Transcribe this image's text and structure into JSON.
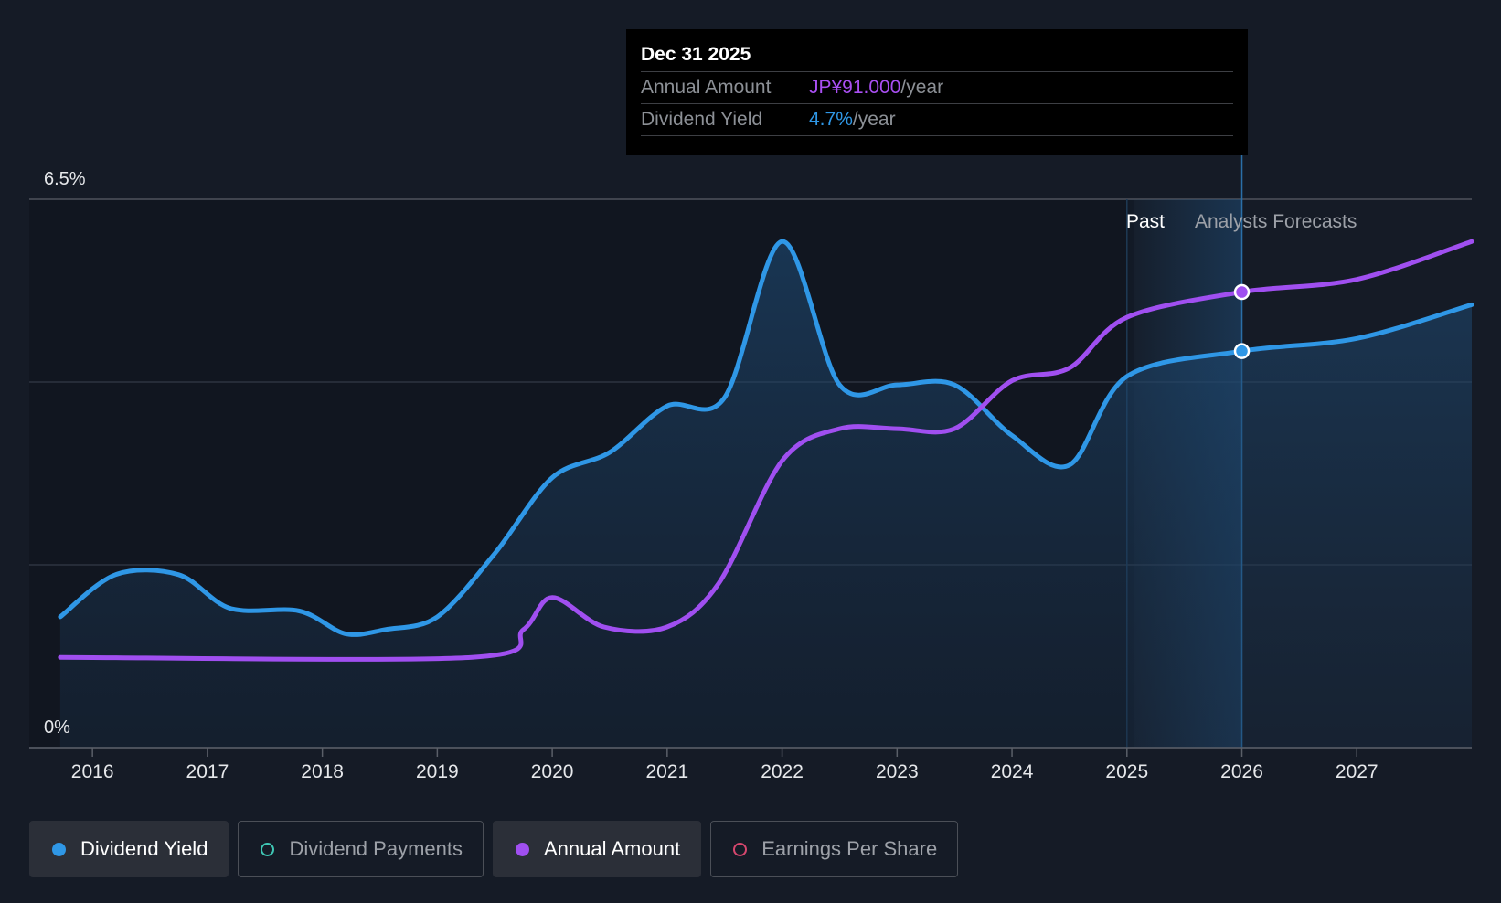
{
  "colors": {
    "yield": "#2f97e6",
    "annual": "#a04ff0",
    "payments": "#3fc7b5",
    "eps": "#d6476e"
  },
  "tooltip": {
    "date": "Dec 31 2025",
    "rows": [
      {
        "label": "Annual Amount",
        "value": "JP¥91.000",
        "unit": "/year",
        "color": "#a94ff2"
      },
      {
        "label": "Dividend Yield",
        "value": "4.7%",
        "unit": "/year",
        "color": "#2f97e6"
      }
    ]
  },
  "regions": {
    "past_label": "Past",
    "forecast_label": "Analysts Forecasts"
  },
  "legend": [
    {
      "label": "Dividend Yield",
      "color": "#2f97e6",
      "active": true,
      "filled": true
    },
    {
      "label": "Dividend Payments",
      "color": "#3fc7b5",
      "active": false,
      "filled": false
    },
    {
      "label": "Annual Amount",
      "color": "#a04ff0",
      "active": true,
      "filled": true
    },
    {
      "label": "Earnings Per Share",
      "color": "#d6476e",
      "active": false,
      "filled": false
    }
  ],
  "chart_data": {
    "type": "area",
    "x_ticks": [
      "2016",
      "2017",
      "2018",
      "2019",
      "2020",
      "2021",
      "2022",
      "2023",
      "2024",
      "2025",
      "2026",
      "2027"
    ],
    "y_tick_labels": [
      "0%",
      "6.5%"
    ],
    "ylim": [
      0,
      6.5
    ],
    "xlim": [
      2015.45,
      2028.0
    ],
    "grid": true,
    "forecast_start": 2025.0,
    "series": [
      {
        "name": "Dividend Yield",
        "unit": "%",
        "area": true,
        "points": [
          [
            2015.72,
            1.55
          ],
          [
            2016.2,
            2.05
          ],
          [
            2016.75,
            2.05
          ],
          [
            2017.2,
            1.65
          ],
          [
            2017.8,
            1.62
          ],
          [
            2018.2,
            1.35
          ],
          [
            2018.55,
            1.4
          ],
          [
            2019.0,
            1.55
          ],
          [
            2019.5,
            2.3
          ],
          [
            2020.0,
            3.2
          ],
          [
            2020.5,
            3.5
          ],
          [
            2021.0,
            4.05
          ],
          [
            2021.5,
            4.15
          ],
          [
            2022.0,
            6.0
          ],
          [
            2022.5,
            4.3
          ],
          [
            2023.0,
            4.3
          ],
          [
            2023.5,
            4.3
          ],
          [
            2024.0,
            3.7
          ],
          [
            2024.5,
            3.35
          ],
          [
            2025.0,
            4.4
          ],
          [
            2026.0,
            4.7
          ],
          [
            2027.0,
            4.85
          ],
          [
            2028.0,
            5.25
          ]
        ]
      },
      {
        "name": "Annual Amount",
        "area": false,
        "points": [
          [
            2015.72,
            1.07
          ],
          [
            2019.3,
            1.07
          ],
          [
            2019.75,
            1.4
          ],
          [
            2020.0,
            1.78
          ],
          [
            2020.45,
            1.43
          ],
          [
            2021.0,
            1.43
          ],
          [
            2021.45,
            1.95
          ],
          [
            2022.0,
            3.4
          ],
          [
            2022.5,
            3.78
          ],
          [
            2023.0,
            3.78
          ],
          [
            2023.5,
            3.78
          ],
          [
            2024.0,
            4.35
          ],
          [
            2024.5,
            4.5
          ],
          [
            2025.0,
            5.1
          ],
          [
            2026.0,
            5.4
          ],
          [
            2027.0,
            5.55
          ],
          [
            2028.0,
            6.0
          ]
        ]
      }
    ],
    "highlight_x": 2026.0
  }
}
